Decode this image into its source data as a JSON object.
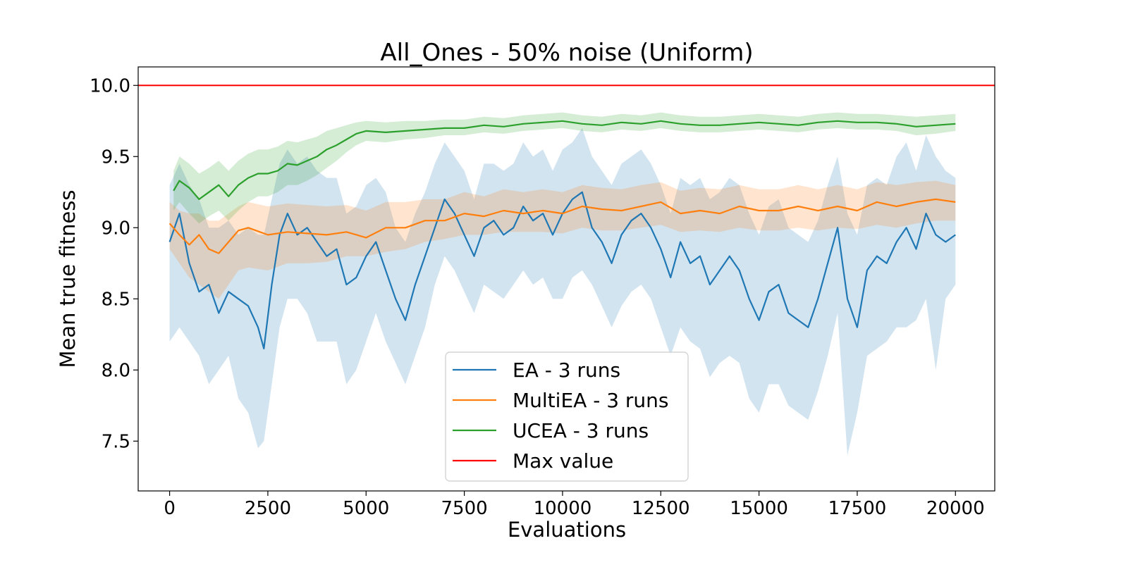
{
  "chart_data": {
    "type": "line",
    "title": "All_Ones - 50% noise (Uniform)",
    "xlabel": "Evaluations",
    "ylabel": "Mean true fitness",
    "xlim": [
      -800,
      21000
    ],
    "ylim": [
      7.15,
      10.13
    ],
    "xticks": [
      "0",
      "2500",
      "5000",
      "7500",
      "10000",
      "12500",
      "15000",
      "17500",
      "20000"
    ],
    "xtick_values": [
      0,
      2500,
      5000,
      7500,
      10000,
      12500,
      15000,
      17500,
      20000
    ],
    "yticks": [
      "7.5",
      "8.0",
      "8.5",
      "9.0",
      "9.5",
      "10.0"
    ],
    "ytick_values": [
      7.5,
      8.0,
      8.5,
      9.0,
      9.5,
      10.0
    ],
    "grid": false,
    "legend_position": "bottom-center",
    "series": [
      {
        "name": "EA - 3 runs",
        "color": "#1f77b4",
        "band": true,
        "band_color": "#1f77b4",
        "x": [
          0,
          250,
          500,
          750,
          1000,
          1250,
          1500,
          1750,
          2000,
          2250,
          2400,
          2600,
          2800,
          3000,
          3250,
          3500,
          3750,
          4000,
          4250,
          4500,
          4750,
          5000,
          5250,
          5500,
          5750,
          6000,
          6250,
          6500,
          6750,
          7000,
          7250,
          7500,
          7750,
          8000,
          8250,
          8500,
          8750,
          9000,
          9250,
          9500,
          9750,
          10000,
          10250,
          10500,
          10750,
          11000,
          11250,
          11500,
          11750,
          12000,
          12250,
          12500,
          12750,
          13000,
          13250,
          13500,
          13750,
          14000,
          14250,
          14500,
          14750,
          15000,
          15250,
          15500,
          15750,
          16000,
          16250,
          16500,
          16750,
          17000,
          17250,
          17500,
          17750,
          18000,
          18250,
          18500,
          18750,
          19000,
          19250,
          19500,
          19750,
          20000
        ],
        "values": [
          8.9,
          9.1,
          8.75,
          8.55,
          8.6,
          8.4,
          8.55,
          8.5,
          8.45,
          8.3,
          8.15,
          8.6,
          8.95,
          9.1,
          8.95,
          9.0,
          8.9,
          8.8,
          8.85,
          8.6,
          8.65,
          8.8,
          8.9,
          8.7,
          8.5,
          8.35,
          8.6,
          8.8,
          9.0,
          9.2,
          9.1,
          8.95,
          8.8,
          9.0,
          9.05,
          8.95,
          9.0,
          9.15,
          9.05,
          9.1,
          8.95,
          9.1,
          9.2,
          9.25,
          9.0,
          8.9,
          8.75,
          8.95,
          9.05,
          9.1,
          9.0,
          8.85,
          8.65,
          8.9,
          8.75,
          8.8,
          8.6,
          8.7,
          8.8,
          8.7,
          8.5,
          8.35,
          8.55,
          8.6,
          8.4,
          8.35,
          8.3,
          8.5,
          8.75,
          9.0,
          8.5,
          8.3,
          8.7,
          8.8,
          8.75,
          8.9,
          9.0,
          8.85,
          9.1,
          8.95,
          8.9,
          8.95
        ],
        "lower": [
          8.2,
          8.3,
          8.2,
          8.1,
          7.9,
          8.0,
          8.1,
          7.8,
          7.7,
          7.45,
          7.5,
          7.9,
          8.3,
          8.5,
          8.5,
          8.4,
          8.2,
          8.2,
          8.2,
          7.9,
          8.0,
          8.2,
          8.4,
          8.2,
          8.05,
          7.9,
          8.1,
          8.3,
          8.6,
          8.8,
          8.7,
          8.55,
          8.4,
          8.6,
          8.55,
          8.5,
          8.6,
          8.7,
          8.6,
          8.65,
          8.5,
          8.5,
          8.65,
          8.7,
          8.6,
          8.45,
          8.3,
          8.45,
          8.55,
          8.6,
          8.5,
          8.3,
          8.1,
          8.3,
          8.2,
          8.15,
          7.95,
          8.05,
          8.1,
          8.05,
          7.8,
          7.7,
          7.9,
          7.9,
          7.75,
          7.7,
          7.65,
          7.85,
          8.1,
          8.4,
          7.4,
          7.7,
          8.1,
          8.15,
          8.2,
          8.3,
          8.3,
          8.35,
          8.5,
          8.0,
          8.5,
          8.6
        ],
        "upper": [
          9.3,
          9.45,
          9.3,
          9.2,
          9.0,
          9.0,
          9.05,
          8.95,
          9.0,
          8.95,
          8.95,
          9.2,
          9.45,
          9.55,
          9.45,
          9.5,
          9.4,
          9.35,
          9.35,
          9.1,
          9.15,
          9.3,
          9.35,
          9.25,
          9.0,
          8.9,
          9.1,
          9.25,
          9.45,
          9.6,
          9.5,
          9.4,
          9.2,
          9.45,
          9.45,
          9.4,
          9.45,
          9.6,
          9.5,
          9.55,
          9.4,
          9.55,
          9.6,
          9.7,
          9.5,
          9.4,
          9.3,
          9.45,
          9.5,
          9.55,
          9.45,
          9.3,
          9.1,
          9.35,
          9.3,
          9.35,
          9.2,
          9.25,
          9.35,
          9.3,
          9.1,
          8.95,
          9.15,
          9.2,
          9.0,
          8.95,
          8.9,
          9.05,
          9.3,
          9.5,
          9.1,
          8.95,
          9.3,
          9.35,
          9.3,
          9.5,
          9.6,
          9.4,
          9.65,
          9.5,
          9.4,
          9.35
        ]
      },
      {
        "name": "MultiEA - 3 runs",
        "color": "#ff7f0e",
        "band": true,
        "band_color": "#ff7f0e",
        "x": [
          0,
          250,
          500,
          750,
          1000,
          1250,
          1500,
          1750,
          2000,
          2500,
          3000,
          3500,
          4000,
          4500,
          5000,
          5500,
          6000,
          6500,
          7000,
          7500,
          8000,
          8500,
          9000,
          9500,
          10000,
          10500,
          11000,
          11500,
          12000,
          12500,
          13000,
          13500,
          14000,
          14500,
          15000,
          15500,
          16000,
          16500,
          17000,
          17500,
          18000,
          18500,
          19000,
          19500,
          20000
        ],
        "values": [
          9.03,
          8.95,
          8.88,
          8.95,
          8.85,
          8.82,
          8.9,
          8.98,
          9.0,
          8.95,
          8.97,
          8.96,
          8.95,
          8.97,
          8.93,
          9.0,
          9.0,
          9.05,
          9.05,
          9.1,
          9.08,
          9.12,
          9.1,
          9.12,
          9.1,
          9.15,
          9.13,
          9.12,
          9.15,
          9.18,
          9.1,
          9.12,
          9.1,
          9.15,
          9.12,
          9.12,
          9.15,
          9.12,
          9.15,
          9.12,
          9.18,
          9.15,
          9.18,
          9.2,
          9.18
        ],
        "lower": [
          8.85,
          8.75,
          8.65,
          8.6,
          8.55,
          8.5,
          8.6,
          8.7,
          8.72,
          8.7,
          8.75,
          8.75,
          8.76,
          8.8,
          8.8,
          8.83,
          8.85,
          8.9,
          8.92,
          8.95,
          8.95,
          8.97,
          8.97,
          8.97,
          8.96,
          9.0,
          8.98,
          8.98,
          9.0,
          9.02,
          8.97,
          8.98,
          8.97,
          9.0,
          8.98,
          8.98,
          9.0,
          8.98,
          9.0,
          8.99,
          9.02,
          9.0,
          9.03,
          9.05,
          9.05
        ],
        "upper": [
          9.18,
          9.12,
          9.1,
          9.1,
          9.05,
          9.05,
          9.1,
          9.15,
          9.18,
          9.15,
          9.17,
          9.16,
          9.15,
          9.16,
          9.12,
          9.18,
          9.18,
          9.2,
          9.2,
          9.25,
          9.22,
          9.27,
          9.25,
          9.27,
          9.25,
          9.3,
          9.28,
          9.27,
          9.3,
          9.32,
          9.26,
          9.28,
          9.27,
          9.3,
          9.27,
          9.27,
          9.3,
          9.27,
          9.3,
          9.27,
          9.32,
          9.3,
          9.32,
          9.33,
          9.3
        ]
      },
      {
        "name": "UCEA - 3 runs",
        "color": "#2ca02c",
        "band": true,
        "band_color": "#2ca02c",
        "x": [
          100,
          250,
          500,
          750,
          1000,
          1250,
          1500,
          1750,
          2000,
          2250,
          2500,
          2750,
          3000,
          3250,
          3500,
          3750,
          4000,
          4250,
          4500,
          4750,
          5000,
          5500,
          6000,
          6500,
          7000,
          7500,
          8000,
          8500,
          9000,
          9500,
          10000,
          10500,
          11000,
          11500,
          12000,
          12500,
          13000,
          13500,
          14000,
          14500,
          15000,
          15500,
          16000,
          16500,
          17000,
          17500,
          18000,
          18500,
          19000,
          19500,
          20000
        ],
        "values": [
          9.26,
          9.33,
          9.28,
          9.2,
          9.25,
          9.3,
          9.22,
          9.3,
          9.35,
          9.38,
          9.38,
          9.4,
          9.45,
          9.44,
          9.47,
          9.5,
          9.55,
          9.58,
          9.62,
          9.66,
          9.68,
          9.67,
          9.68,
          9.69,
          9.7,
          9.7,
          9.72,
          9.71,
          9.73,
          9.74,
          9.75,
          9.73,
          9.72,
          9.74,
          9.73,
          9.75,
          9.73,
          9.72,
          9.72,
          9.73,
          9.74,
          9.73,
          9.72,
          9.74,
          9.75,
          9.74,
          9.74,
          9.73,
          9.71,
          9.72,
          9.73
        ],
        "lower": [
          9.12,
          9.18,
          9.1,
          9.03,
          9.08,
          9.12,
          9.05,
          9.12,
          9.18,
          9.22,
          9.22,
          9.25,
          9.3,
          9.3,
          9.33,
          9.37,
          9.42,
          9.47,
          9.53,
          9.58,
          9.61,
          9.6,
          9.62,
          9.63,
          9.65,
          9.65,
          9.67,
          9.66,
          9.68,
          9.69,
          9.7,
          9.68,
          9.67,
          9.69,
          9.68,
          9.7,
          9.68,
          9.67,
          9.67,
          9.68,
          9.69,
          9.68,
          9.67,
          9.69,
          9.7,
          9.69,
          9.69,
          9.68,
          9.65,
          9.66,
          9.68
        ],
        "upper": [
          9.4,
          9.5,
          9.45,
          9.38,
          9.42,
          9.47,
          9.4,
          9.47,
          9.52,
          9.55,
          9.55,
          9.57,
          9.61,
          9.6,
          9.62,
          9.64,
          9.68,
          9.7,
          9.72,
          9.74,
          9.75,
          9.74,
          9.75,
          9.75,
          9.76,
          9.76,
          9.78,
          9.77,
          9.79,
          9.8,
          9.81,
          9.79,
          9.78,
          9.8,
          9.79,
          9.81,
          9.79,
          9.78,
          9.78,
          9.79,
          9.8,
          9.79,
          9.78,
          9.8,
          9.81,
          9.8,
          9.8,
          9.79,
          9.78,
          9.79,
          9.8
        ]
      },
      {
        "name": "Max value",
        "color": "#ff0000",
        "band": false,
        "hline": 10.0
      }
    ]
  }
}
